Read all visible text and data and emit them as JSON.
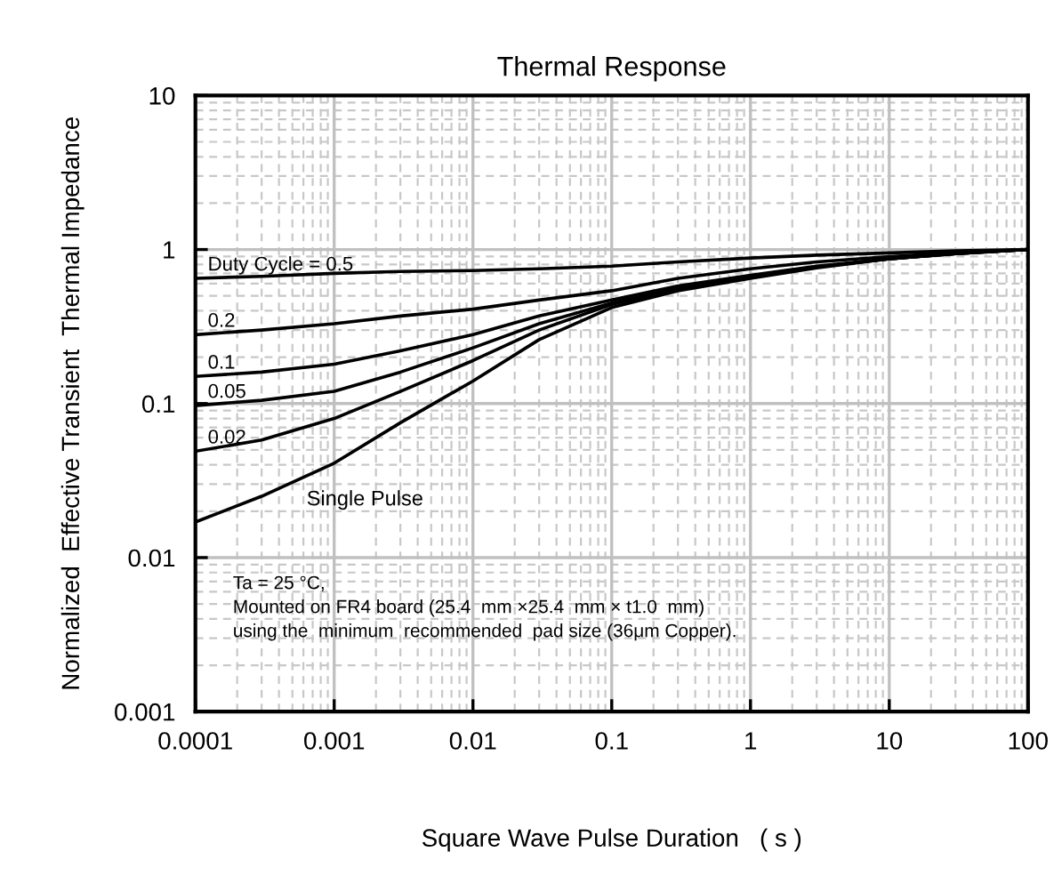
{
  "chart_data": {
    "type": "line",
    "title": "Thermal Response",
    "xlabel": "Square Wave Pulse Duration   ( s )",
    "ylabel": "Normalized  Effective Transient  Thermal Impedance",
    "log": "xy",
    "grid": true,
    "legend": false,
    "marker": "none",
    "line_style": "solid",
    "xlim": [
      0.0001,
      100
    ],
    "xticks": [
      0.0001,
      0.001,
      0.01,
      0.1,
      1,
      10,
      100
    ],
    "ylim": [
      0.001,
      10
    ],
    "yticks": [
      0.001,
      0.01,
      0.1,
      1,
      10
    ],
    "x": [
      0.0001,
      0.0003,
      0.001,
      0.003,
      0.01,
      0.03,
      0.1,
      0.3,
      1,
      3,
      10,
      30,
      100
    ],
    "series": [
      {
        "name": "Duty Cycle = 0.5",
        "color": "#000000",
        "values": [
          0.65,
          0.67,
          0.7,
          0.72,
          0.73,
          0.75,
          0.78,
          0.83,
          0.88,
          0.92,
          0.95,
          0.98,
          1.0
        ]
      },
      {
        "name": "0.2",
        "color": "#000000",
        "values": [
          0.28,
          0.3,
          0.33,
          0.37,
          0.41,
          0.47,
          0.54,
          0.65,
          0.75,
          0.83,
          0.9,
          0.95,
          1.0
        ]
      },
      {
        "name": "0.1",
        "color": "#000000",
        "values": [
          0.15,
          0.16,
          0.18,
          0.22,
          0.28,
          0.37,
          0.47,
          0.58,
          0.68,
          0.78,
          0.87,
          0.94,
          1.0
        ]
      },
      {
        "name": "0.05",
        "color": "#000000",
        "values": [
          0.097,
          0.105,
          0.12,
          0.16,
          0.23,
          0.33,
          0.45,
          0.56,
          0.67,
          0.77,
          0.87,
          0.94,
          1.0
        ]
      },
      {
        "name": "0.02",
        "color": "#000000",
        "values": [
          0.049,
          0.058,
          0.08,
          0.12,
          0.19,
          0.3,
          0.44,
          0.55,
          0.66,
          0.77,
          0.87,
          0.94,
          1.0
        ]
      },
      {
        "name": "Single Pulse",
        "color": "#000000",
        "values": [
          0.017,
          0.025,
          0.041,
          0.075,
          0.14,
          0.26,
          0.42,
          0.54,
          0.65,
          0.76,
          0.87,
          0.94,
          1.0
        ]
      }
    ],
    "annotations": [
      "Ta = 25 °C,\nMounted on FR4 board (25.4  mm ×25.4  mm × t1.0  mm)\nusing the  minimum  recommended  pad size (36μm Copper)."
    ]
  }
}
